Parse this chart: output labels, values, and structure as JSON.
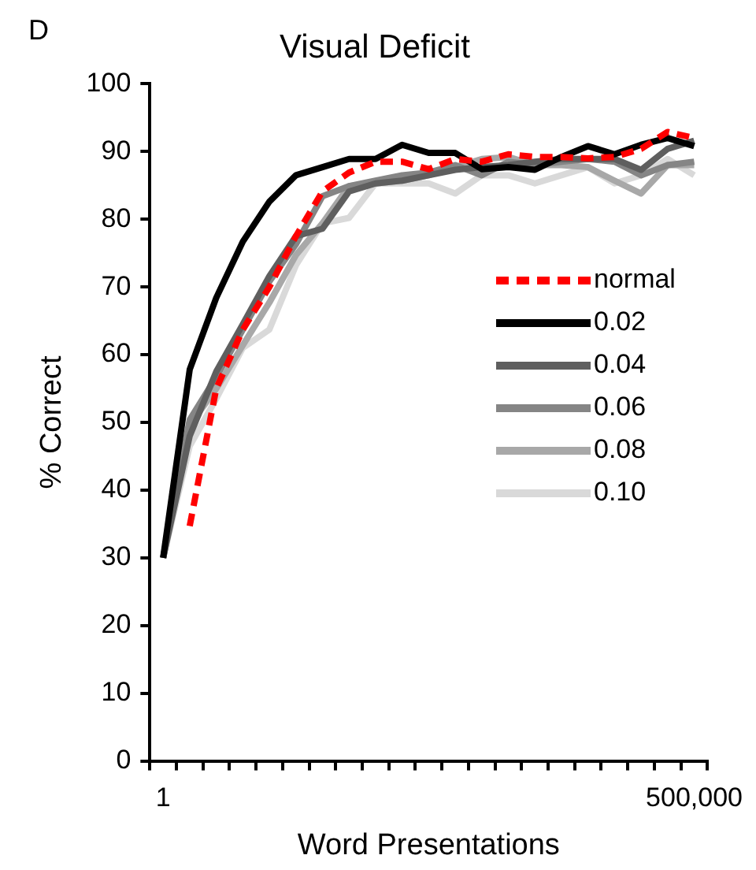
{
  "chart_data": {
    "type": "line",
    "title": "Visual Deficit",
    "xlabel": "Word Presentations",
    "ylabel": "% Correct",
    "annotations": [
      "D"
    ],
    "categories": [
      "1",
      null,
      null,
      null,
      null,
      null,
      null,
      null,
      null,
      null,
      null,
      null,
      null,
      null,
      null,
      null,
      null,
      null,
      null,
      null,
      "500,000"
    ],
    "ylim": [
      0,
      100
    ],
    "yticks": [
      0,
      10,
      20,
      30,
      40,
      50,
      60,
      70,
      80,
      90,
      100
    ],
    "legend": "right",
    "marker": "none",
    "series": [
      {
        "name": "normal",
        "color": "#ff0000",
        "line_style": "dashed",
        "values": [
          null,
          34.7,
          55,
          63.7,
          70,
          77.5,
          84.1,
          86.9,
          88.5,
          88.5,
          87.4,
          88.9,
          88.5,
          89.6,
          89.2,
          89.2,
          89,
          89.2,
          90.4,
          92.9,
          92
        ]
      },
      {
        "name": "0.02",
        "color": "#000000",
        "values": [
          30,
          57.8,
          68.4,
          76.7,
          82.6,
          86.5,
          87.7,
          88.9,
          88.9,
          91,
          89.8,
          89.8,
          87.4,
          87.7,
          87.3,
          89.2,
          90.8,
          89.6,
          91,
          92,
          90.8
        ]
      },
      {
        "name": "0.04",
        "color": "#5f5f5f",
        "values": [
          30,
          48,
          57.5,
          64.5,
          71.6,
          77.5,
          78.6,
          84.1,
          85.3,
          85.7,
          86.5,
          87.3,
          87.7,
          88,
          88.5,
          88.9,
          88.9,
          88.9,
          87.3,
          90.4,
          91.6
        ]
      },
      {
        "name": "0.06",
        "color": "#858585",
        "values": [
          30,
          50.4,
          56.7,
          63.7,
          70.8,
          76.3,
          83.4,
          84.9,
          85.7,
          86.5,
          86.9,
          88,
          86.5,
          88.5,
          88,
          88.5,
          88.9,
          88.5,
          86.5,
          88,
          88.5
        ]
      },
      {
        "name": "0.08",
        "color": "#a8a8a8",
        "values": [
          30,
          49.6,
          55,
          61.4,
          67.7,
          74.7,
          79.4,
          84.9,
          85.3,
          85.7,
          86.5,
          87.7,
          88.9,
          89.2,
          88,
          88,
          87.7,
          85.7,
          83.8,
          88,
          88
        ]
      },
      {
        "name": "0.10",
        "color": "#d9d9d9",
        "values": [
          30,
          46.5,
          53.5,
          61,
          63.7,
          73.2,
          79.4,
          80.2,
          85.3,
          85.3,
          85.3,
          83.8,
          86.5,
          86.5,
          85.3,
          86.5,
          87.7,
          85.3,
          86.5,
          88.9,
          86.5
        ]
      }
    ]
  }
}
